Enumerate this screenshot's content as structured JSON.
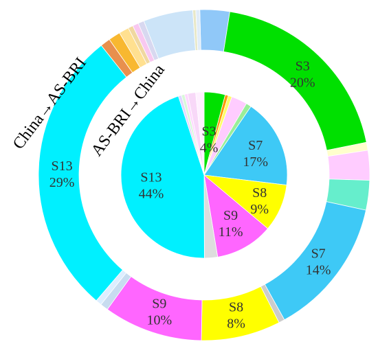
{
  "chart_data": {
    "type": "pie",
    "rings": [
      {
        "name": "China→AS-BRI",
        "slices": [
          {
            "label": "",
            "value": 3.0,
            "color": "#90c8f8"
          },
          {
            "label": "S3",
            "value": 20.0,
            "color": "#00e000",
            "text": "S3",
            "pct": "20%"
          },
          {
            "label": "",
            "value": 0.8,
            "color": "#ffffcc"
          },
          {
            "label": "",
            "value": 3.0,
            "color": "#ffccff"
          },
          {
            "label": "",
            "value": 3.0,
            "color": "#66eecc"
          },
          {
            "label": "S7",
            "value": 14.0,
            "color": "#3ec9f6",
            "text": "S7",
            "pct": "14%"
          },
          {
            "label": "",
            "value": 0.6,
            "color": "#cccccc"
          },
          {
            "label": "S8",
            "value": 8.0,
            "color": "#ffff00",
            "text": "S8",
            "pct": "8%"
          },
          {
            "label": "S9",
            "value": 10.0,
            "color": "#ff66ff",
            "text": "S9",
            "pct": "10%"
          },
          {
            "label": "",
            "value": 0.8,
            "color": "#c8dcf0"
          },
          {
            "label": "",
            "value": 0.6,
            "color": "#ddeeff"
          },
          {
            "label": "S13",
            "value": 29.0,
            "color": "#00f0ff",
            "text": "S13",
            "pct": "29%"
          },
          {
            "label": "",
            "value": 1.0,
            "color": "#e8904e"
          },
          {
            "label": "",
            "value": 1.2,
            "color": "#f8b830"
          },
          {
            "label": "",
            "value": 1.0,
            "color": "#ffe090"
          },
          {
            "label": "",
            "value": 0.5,
            "color": "#f0d8a0"
          },
          {
            "label": "",
            "value": 0.6,
            "color": "#f8c8f0"
          },
          {
            "label": "",
            "value": 0.6,
            "color": "#d8d8f0"
          },
          {
            "label": "",
            "value": 5.0,
            "color": "#cce4f8"
          },
          {
            "label": "",
            "value": 0.3,
            "color": "#e8e8c8"
          },
          {
            "label": "",
            "value": 0.4,
            "color": "#e0ecf8"
          }
        ]
      },
      {
        "name": "AS-BRI→China",
        "slices": [
          {
            "label": "S3",
            "value": 4.0,
            "color": "#00e000",
            "text": "S3",
            "pct": "4%"
          },
          {
            "label": "",
            "value": 0.6,
            "color": "#ff9900"
          },
          {
            "label": "",
            "value": 0.7,
            "color": "#ffff66"
          },
          {
            "label": "",
            "value": 3.0,
            "color": "#ffccff"
          },
          {
            "label": "",
            "value": 1.0,
            "color": "#99ee99"
          },
          {
            "label": "S7",
            "value": 17.0,
            "color": "#3ec9f6",
            "text": "S7",
            "pct": "17%"
          },
          {
            "label": "S8",
            "value": 9.0,
            "color": "#ffff00",
            "text": "S8",
            "pct": "9%"
          },
          {
            "label": "S9",
            "value": 11.0,
            "color": "#ff66ff",
            "text": "S9",
            "pct": "11%"
          },
          {
            "label": "",
            "value": 2.5,
            "color": "#dddddd"
          },
          {
            "label": "S13",
            "value": 44.0,
            "color": "#00f0ff",
            "text": "S13",
            "pct": "44%"
          },
          {
            "label": "",
            "value": 0.6,
            "color": "#e0d8ff"
          },
          {
            "label": "",
            "value": 0.6,
            "color": "#d8f8d8"
          },
          {
            "label": "",
            "value": 0.6,
            "color": "#ffd8ff"
          },
          {
            "label": "",
            "value": 1.5,
            "color": "#f8d8f8"
          },
          {
            "label": "",
            "value": 1.6,
            "color": "#fff0ff"
          }
        ]
      }
    ]
  }
}
